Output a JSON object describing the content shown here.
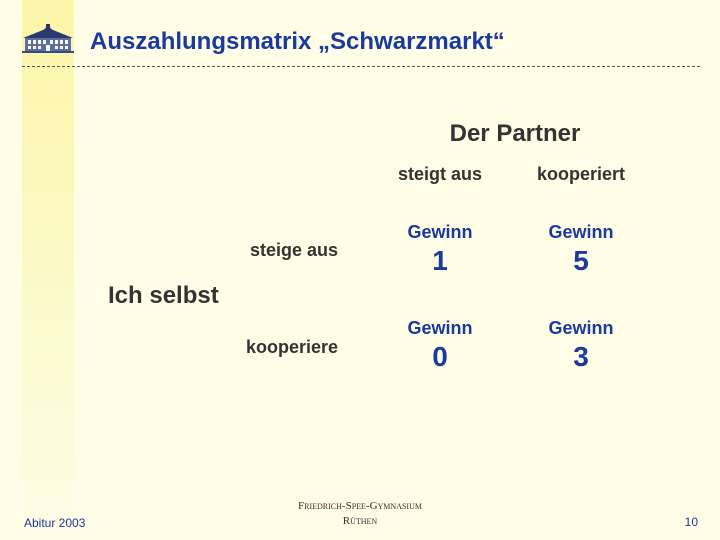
{
  "slide": {
    "title": "Auszahlungsmatrix „Schwarzmarkt“",
    "partner_heading": "Der Partner",
    "columns": [
      "steigt aus",
      "kooperiert"
    ],
    "self_heading": "Ich selbst",
    "rows": [
      "steige aus",
      "kooperiere"
    ],
    "cell_label": "Gewinn",
    "payoffs": [
      [
        1,
        5
      ],
      [
        0,
        3
      ]
    ]
  },
  "footer": {
    "left": "Abitur 2003",
    "center_line1": "Friedrich-Spee-Gymnasium",
    "center_line2": "Rüthen",
    "page_number": "10"
  },
  "icons": {
    "logo": "school-building-icon"
  },
  "colors": {
    "title": "#1a3a9c",
    "background": "#fffde6",
    "band": "#fbf6a8"
  }
}
